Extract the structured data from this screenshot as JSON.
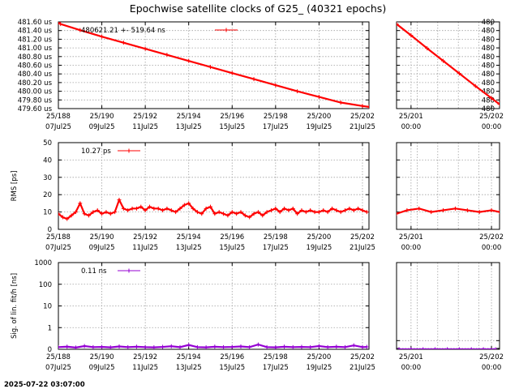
{
  "title": "Epochwise satellite clocks of G25_ (40321 epochs)",
  "timestamp": "2025-07-22 03:07:00",
  "colors": {
    "clock": "#ff0000",
    "fit_sigma": "#9400d3",
    "grid": "#a0a0a0"
  },
  "chart_data": [
    {
      "type": "scatter",
      "panel": "clock-main",
      "title": "",
      "xlabel": "",
      "ylabel": "",
      "xlim": [
        188,
        202.3
      ],
      "ylim": [
        479.6,
        481.6
      ],
      "x_ticks": [
        188,
        190,
        192,
        194,
        196,
        198,
        200,
        202
      ],
      "x_tick_top": [
        "25/188",
        "25/190",
        "25/192",
        "25/194",
        "25/196",
        "25/198",
        "25/200",
        "25/202"
      ],
      "x_tick_bottom": [
        "07Jul25",
        "09Jul25",
        "11Jul25",
        "13Jul25",
        "15Jul25",
        "17Jul25",
        "19Jul25",
        "21Jul25"
      ],
      "y_ticks": [
        479.6,
        479.8,
        480.0,
        480.2,
        480.4,
        480.6,
        480.8,
        481.0,
        481.2,
        481.4,
        481.6
      ],
      "y_tick_labels": [
        "479.60 us",
        "479.80 us",
        "480.00 us",
        "480.20 us",
        "480.40 us",
        "480.60 us",
        "480.80 us",
        "481.00 us",
        "481.20 us",
        "481.40 us",
        "481.60 us"
      ],
      "grid": true,
      "legend_position": "top-left",
      "series": [
        {
          "name": "480621.21 +-     519.64 ns",
          "x": [
            188.0,
            188.1,
            189.0,
            190.0,
            191.0,
            192.0,
            193.0,
            194.0,
            195.0,
            196.0,
            197.0,
            198.0,
            199.0,
            200.0,
            201.0,
            202.0,
            202.3
          ],
          "y": [
            481.58,
            481.55,
            481.41,
            481.26,
            481.12,
            480.98,
            480.84,
            480.7,
            480.56,
            480.42,
            480.28,
            480.14,
            480.0,
            479.87,
            479.74,
            479.66,
            479.64
          ]
        }
      ]
    },
    {
      "type": "scatter",
      "panel": "clock-zoom",
      "title": "",
      "xlabel": "",
      "ylabel": "",
      "xlim": [
        200.82,
        202.1
      ],
      "ylim": [
        479.6,
        481.6
      ],
      "x_ticks": [
        201,
        202
      ],
      "x_tick_top": [
        "25/201",
        "25/202"
      ],
      "x_tick_bottom": [
        "00:00",
        "00:00"
      ],
      "y_tick_labels": [
        "480",
        "480",
        "480",
        "480",
        "480",
        "480",
        "480",
        "480",
        "480",
        "480",
        "480"
      ],
      "grid": true,
      "series": [
        {
          "x": [
            200.82,
            201.0,
            201.2,
            201.4,
            201.6,
            201.8,
            202.0,
            202.1
          ],
          "y": [
            481.55,
            481.29,
            480.99,
            480.7,
            480.41,
            480.12,
            479.84,
            479.7
          ]
        }
      ]
    },
    {
      "type": "scatter",
      "panel": "rms-main",
      "title": "",
      "xlabel": "",
      "ylabel": "RMS [ps]",
      "xlim": [
        188,
        202.3
      ],
      "ylim": [
        0,
        50
      ],
      "x_ticks": [
        188,
        190,
        192,
        194,
        196,
        198,
        200,
        202
      ],
      "x_tick_top": [
        "25/188",
        "25/190",
        "25/192",
        "25/194",
        "25/196",
        "25/198",
        "25/200",
        "25/202"
      ],
      "x_tick_bottom": [
        "07Jul25",
        "09Jul25",
        "11Jul25",
        "13Jul25",
        "15Jul25",
        "17Jul25",
        "19Jul25",
        "21Jul25"
      ],
      "y_ticks": [
        0,
        10,
        20,
        30,
        40,
        50
      ],
      "y_tick_labels": [
        "0",
        "10",
        "20",
        "30",
        "40",
        "50"
      ],
      "grid": true,
      "legend_position": "top-left",
      "series": [
        {
          "name": "10.27 ps",
          "x": [
            188.0,
            188.2,
            188.4,
            188.6,
            188.8,
            189.0,
            189.2,
            189.4,
            189.6,
            189.8,
            190.0,
            190.2,
            190.4,
            190.6,
            190.8,
            191.0,
            191.2,
            191.4,
            191.6,
            191.8,
            192.0,
            192.2,
            192.4,
            192.6,
            192.8,
            193.0,
            193.2,
            193.4,
            193.6,
            193.8,
            194.0,
            194.2,
            194.4,
            194.6,
            194.8,
            195.0,
            195.2,
            195.4,
            195.6,
            195.8,
            196.0,
            196.2,
            196.4,
            196.6,
            196.8,
            197.0,
            197.2,
            197.4,
            197.6,
            197.8,
            198.0,
            198.2,
            198.4,
            198.6,
            198.8,
            199.0,
            199.2,
            199.4,
            199.6,
            199.8,
            200.0,
            200.2,
            200.4,
            200.6,
            200.8,
            201.0,
            201.2,
            201.4,
            201.6,
            201.8,
            202.0,
            202.2
          ],
          "y": [
            9,
            7,
            6,
            8,
            10,
            15,
            9,
            8,
            10,
            11,
            9,
            10,
            9,
            10,
            17,
            12,
            11,
            12,
            12,
            13,
            11,
            13,
            12,
            12,
            11,
            12,
            11,
            10,
            12,
            14,
            15,
            12,
            10,
            9,
            12,
            13,
            9,
            10,
            9,
            8,
            10,
            9,
            10,
            8,
            7,
            9,
            10,
            8,
            10,
            11,
            12,
            10,
            12,
            11,
            12,
            9,
            11,
            10,
            11,
            10,
            10,
            11,
            10,
            12,
            11,
            10,
            11,
            12,
            11,
            12,
            11,
            10
          ]
        }
      ]
    },
    {
      "type": "scatter",
      "panel": "rms-zoom",
      "title": "",
      "xlabel": "",
      "ylabel": "",
      "xlim": [
        200.82,
        202.1
      ],
      "ylim": [
        0,
        50
      ],
      "x_ticks": [
        201,
        202
      ],
      "x_tick_top": [
        "25/201",
        "25/202"
      ],
      "x_tick_bottom": [
        "00:00",
        "00:00"
      ],
      "grid": true,
      "series": [
        {
          "x": [
            200.82,
            200.95,
            201.1,
            201.25,
            201.4,
            201.55,
            201.7,
            201.85,
            202.0,
            202.1
          ],
          "y": [
            9,
            11,
            12,
            10,
            11,
            12,
            11,
            10,
            11,
            10
          ]
        }
      ]
    },
    {
      "type": "scatter",
      "panel": "sigma-main",
      "title": "",
      "xlabel": "",
      "ylabel": "Sig. of lin. fit/h [ns]",
      "xlim": [
        188,
        202.3
      ],
      "ylim": [
        0,
        1000
      ],
      "y_scale": "log-like",
      "x_ticks": [
        188,
        190,
        192,
        194,
        196,
        198,
        200,
        202
      ],
      "x_tick_top": [
        "25/188",
        "25/190",
        "25/192",
        "25/194",
        "25/196",
        "25/198",
        "25/200",
        "25/202"
      ],
      "x_tick_bottom": [
        "07Jul25",
        "09Jul25",
        "11Jul25",
        "13Jul25",
        "15Jul25",
        "17Jul25",
        "19Jul25",
        "21Jul25"
      ],
      "y_ticks": [
        0,
        1,
        10,
        100,
        1000
      ],
      "y_tick_labels": [
        "0",
        "1",
        "10",
        "100",
        "1000"
      ],
      "grid": true,
      "legend_position": "top-left",
      "series": [
        {
          "name": "0.11 ns",
          "x": [
            188.0,
            188.4,
            188.8,
            189.2,
            189.6,
            190.0,
            190.4,
            190.8,
            191.2,
            191.6,
            192.0,
            192.4,
            192.8,
            193.2,
            193.6,
            194.0,
            194.4,
            194.8,
            195.2,
            195.6,
            196.0,
            196.4,
            196.8,
            197.2,
            197.6,
            198.0,
            198.4,
            198.8,
            199.2,
            199.6,
            200.0,
            200.4,
            200.8,
            201.2,
            201.6,
            202.0,
            202.2
          ],
          "y": [
            0.1,
            0.12,
            0.08,
            0.15,
            0.1,
            0.11,
            0.09,
            0.13,
            0.1,
            0.12,
            0.1,
            0.09,
            0.11,
            0.14,
            0.1,
            0.2,
            0.1,
            0.09,
            0.12,
            0.1,
            0.11,
            0.13,
            0.1,
            0.22,
            0.1,
            0.09,
            0.12,
            0.1,
            0.11,
            0.1,
            0.15,
            0.1,
            0.12,
            0.1,
            0.18,
            0.1,
            0.11
          ]
        }
      ]
    },
    {
      "type": "scatter",
      "panel": "sigma-zoom",
      "title": "",
      "xlabel": "",
      "ylabel": "",
      "xlim": [
        200.82,
        202.1
      ],
      "ylim": [
        0,
        1000
      ],
      "x_ticks": [
        201,
        202
      ],
      "x_tick_top": [
        "25/201",
        "25/202"
      ],
      "x_tick_bottom": [
        "00:00",
        "00:00"
      ],
      "grid": true,
      "series": [
        {
          "x": [
            200.85,
            201.0,
            201.15,
            201.3,
            201.45,
            201.6,
            201.75,
            201.9,
            202.05
          ],
          "y": [
            0.05,
            0.2,
            0.08,
            0.1,
            0.06,
            0.15,
            0.1,
            0.05,
            0.12
          ]
        }
      ]
    }
  ]
}
